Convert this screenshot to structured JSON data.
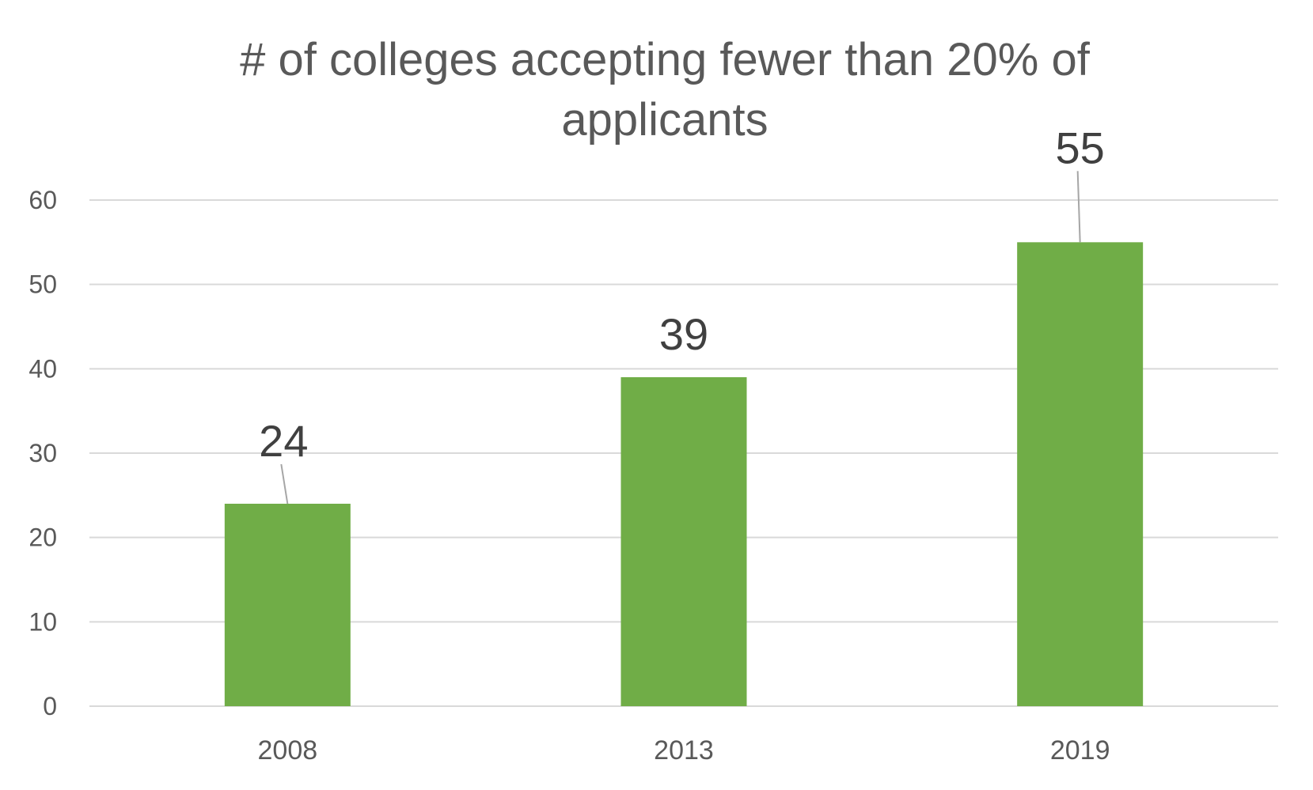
{
  "chart_data": {
    "type": "bar",
    "title": "# of colleges accepting fewer than 20% of applicants",
    "categories": [
      "2008",
      "2013",
      "2019"
    ],
    "values": [
      24,
      39,
      55
    ],
    "data_labels": [
      "24",
      "39",
      "55"
    ],
    "xlabel": "",
    "ylabel": "",
    "ylim": [
      0,
      60
    ],
    "yticks": [
      "0",
      "10",
      "20",
      "30",
      "40",
      "50",
      "60"
    ],
    "grid": true,
    "legend": "none",
    "colors": {
      "bar": "#70ad47",
      "grid": "#d9d9d9",
      "leader_line": "#a6a6a6",
      "title": "#595959"
    }
  }
}
